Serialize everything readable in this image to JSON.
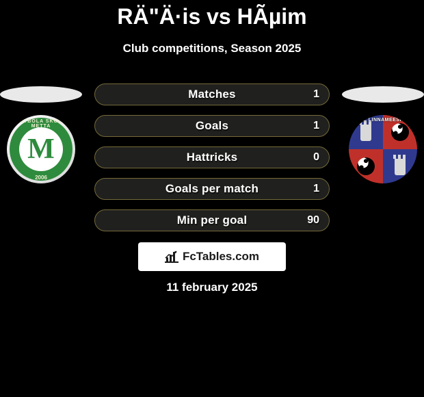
{
  "title": {
    "text": "RÄ\"Ä·is vs HÃµim",
    "fontsize": 32,
    "color": "#ffffff"
  },
  "subtitle": {
    "text": "Club competitions, Season 2025",
    "fontsize": 17,
    "color": "#ffffff"
  },
  "date": {
    "text": "11 february 2025",
    "fontsize": 17,
    "color": "#ffffff"
  },
  "background_color": "#000000",
  "ellipse_color": "#e9e9e9",
  "team_left": {
    "name": "FS Metta",
    "ring_text": "FUTBOLA SKOLA METTA",
    "letter": "M",
    "year": "2006",
    "outer_ring_color": "#2e8b3d",
    "inner_bg": "#ffffff",
    "letter_color": "#2e8b3d",
    "ring_text_color": "#f0f0d0"
  },
  "team_right": {
    "name": "Paide Linnameeskond",
    "top_text": "PAIDE LINNAMEESKOND",
    "q1_bg": "#2f3a8f",
    "q2_bg": "#c0302a",
    "q3_bg": "#c0302a",
    "q4_bg": "#2f3a8f",
    "tower_color": "#d9d9d9"
  },
  "stat_style": {
    "bg": "#20201e",
    "border": "#756a3a",
    "label_fontsize": 17,
    "value_fontsize": 16,
    "label_color": "#ffffff",
    "value_color": "#ffffff"
  },
  "stats": {
    "rows": [
      {
        "label": "Matches",
        "left": "",
        "right": "1"
      },
      {
        "label": "Goals",
        "left": "",
        "right": "1"
      },
      {
        "label": "Hattricks",
        "left": "",
        "right": "0"
      },
      {
        "label": "Goals per match",
        "left": "",
        "right": "1"
      },
      {
        "label": "Min per goal",
        "left": "",
        "right": "90"
      }
    ]
  },
  "brand": {
    "text": "FcTables.com",
    "bg": "#ffffff",
    "color": "#1a1a1a",
    "fontsize": 17,
    "icon_color": "#1a1a1a"
  }
}
